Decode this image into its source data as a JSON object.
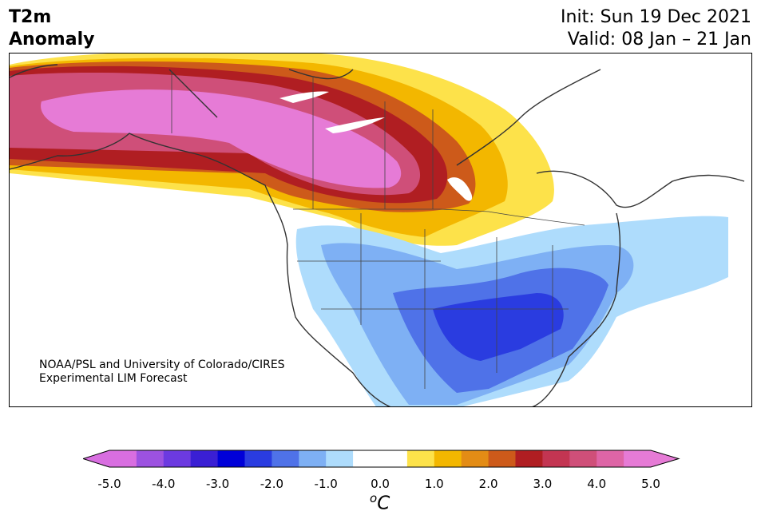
{
  "title": "T2m\nAnomaly",
  "init_label": "Init: Sun 19 Dec 2021",
  "valid_label": "Valid: 08 Jan – 21 Jan",
  "credit_line1": "NOAA/PSL and University of Colorado/CIRES",
  "credit_line2": "Experimental LIM Forecast",
  "colorbar": {
    "ticks": [
      "-5.0",
      "-4.0",
      "-3.0",
      "-2.0",
      "-1.0",
      "0.0",
      "1.0",
      "2.0",
      "3.0",
      "4.0",
      "5.0"
    ],
    "unit_base": "C",
    "unit_sup": "o",
    "colors": [
      "#d86ee0",
      "#9c52e0",
      "#6c3ae0",
      "#3a1fd4",
      "#0000d8",
      "#2a3ce0",
      "#4f72e8",
      "#7eb0f4",
      "#aedcfc",
      "#ffffff",
      "#ffffff",
      "#fde24a",
      "#f3b700",
      "#e38c15",
      "#cd5a1a",
      "#b01e22",
      "#c33552",
      "#cf4f79",
      "#de65a6",
      "#e67bd6"
    ],
    "min_color": "#d86ee0",
    "max_color": "#e67bd6"
  },
  "map": {
    "region": "North America",
    "warm_anomaly_region": "Alaska / western Canada",
    "cold_anomaly_region": "Southern & eastern United States"
  }
}
